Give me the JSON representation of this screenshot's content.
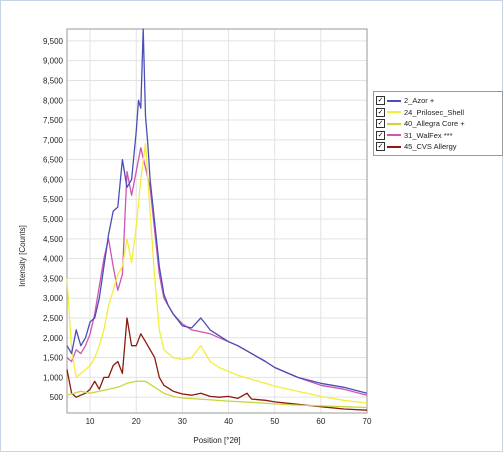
{
  "chart_data": {
    "type": "line",
    "title": "",
    "xlabel": "Position [°2θ]",
    "ylabel": "Intensity [Counts]",
    "xlim": [
      5,
      70
    ],
    "ylim": [
      100,
      9800
    ],
    "x_ticks": [
      "10",
      "20",
      "30",
      "40",
      "50",
      "60",
      "70"
    ],
    "y_ticks": [
      "500",
      "1,000",
      "1,500",
      "2,000",
      "2,500",
      "3,000",
      "3,500",
      "4,000",
      "4,500",
      "5,000",
      "5,500",
      "6,000",
      "6,500",
      "7,000",
      "7,500",
      "8,000",
      "8,500",
      "9,000",
      "9,500"
    ],
    "grid": true,
    "legend_position": "right",
    "series": [
      {
        "name": "2_Azor +",
        "color": "#4a4fb5",
        "x": [
          5,
          6,
          7,
          8,
          9,
          10,
          11,
          12,
          13,
          14,
          15,
          16,
          17,
          18,
          19,
          20,
          20.5,
          21,
          21.5,
          22,
          22.5,
          23,
          24,
          25,
          26,
          27,
          28,
          30,
          32,
          34,
          35,
          36,
          38,
          40,
          42,
          45,
          48,
          50,
          55,
          60,
          65,
          70
        ],
        "y": [
          1800,
          1600,
          2200,
          1800,
          2000,
          2400,
          2500,
          3000,
          3800,
          4600,
          5200,
          5300,
          6500,
          5800,
          6000,
          7200,
          8000,
          7800,
          9800,
          7600,
          6900,
          6000,
          4900,
          3800,
          3100,
          2800,
          2600,
          2300,
          2250,
          2500,
          2350,
          2200,
          2050,
          1900,
          1800,
          1600,
          1400,
          1250,
          1000,
          850,
          750,
          600
        ]
      },
      {
        "name": "24_Prilosec_Shell",
        "color": "#f2ee3a",
        "x": [
          5,
          6,
          7,
          8,
          9,
          10,
          11,
          12,
          13,
          14,
          15,
          16,
          17,
          18,
          19,
          20,
          21,
          22,
          23,
          24,
          25,
          26,
          28,
          30,
          32,
          34,
          36,
          38,
          40,
          42,
          45,
          48,
          50,
          55,
          60,
          65,
          70
        ],
        "y": [
          3500,
          1700,
          1000,
          1100,
          1200,
          1300,
          1500,
          1800,
          2200,
          2800,
          3200,
          3600,
          3800,
          4500,
          3900,
          4800,
          6000,
          6900,
          5200,
          3500,
          2200,
          1700,
          1500,
          1450,
          1500,
          1800,
          1400,
          1250,
          1150,
          1050,
          950,
          850,
          780,
          650,
          520,
          420,
          350
        ]
      },
      {
        "name": "40_Allegra Core +",
        "color": "#c8d63a",
        "x": [
          5,
          8,
          10,
          12,
          14,
          16,
          18,
          20,
          22,
          24,
          26,
          28,
          30,
          35,
          40,
          45,
          50,
          55,
          60,
          65,
          70
        ],
        "y": [
          550,
          650,
          600,
          650,
          700,
          750,
          850,
          900,
          900,
          750,
          600,
          520,
          480,
          440,
          400,
          370,
          330,
          300,
          280,
          260,
          240
        ]
      },
      {
        "name": "31_WalFex ***",
        "color": "#cc55b5",
        "x": [
          5,
          6,
          7,
          8,
          9,
          10,
          11,
          12,
          13,
          14,
          15,
          16,
          17,
          18,
          19,
          20,
          21,
          22,
          23,
          24,
          25,
          26,
          28,
          30,
          32,
          34,
          36,
          38,
          40,
          42,
          45,
          48,
          50,
          55,
          60,
          65,
          70
        ],
        "y": [
          1500,
          1400,
          1700,
          1600,
          1800,
          2100,
          2600,
          3300,
          4000,
          4500,
          3800,
          3200,
          3600,
          6200,
          5600,
          6200,
          6800,
          6300,
          5800,
          4700,
          3600,
          3000,
          2600,
          2350,
          2200,
          2150,
          2100,
          2000,
          1900,
          1800,
          1600,
          1400,
          1250,
          1000,
          800,
          700,
          550
        ]
      },
      {
        "name": "45_CVS Allergy",
        "color": "#8b1a10",
        "x": [
          5,
          6,
          7,
          8,
          9,
          10,
          11,
          12,
          13,
          14,
          15,
          16,
          17,
          18,
          19,
          20,
          21,
          22,
          23,
          24,
          25,
          26,
          28,
          30,
          32,
          34,
          36,
          38,
          40,
          42,
          44,
          45,
          48,
          50,
          55,
          60,
          65,
          70
        ],
        "y": [
          1200,
          600,
          500,
          550,
          600,
          700,
          900,
          700,
          1000,
          1000,
          1300,
          1400,
          1100,
          2500,
          1800,
          1800,
          2100,
          1900,
          1700,
          1500,
          1000,
          800,
          650,
          580,
          550,
          600,
          520,
          500,
          520,
          470,
          600,
          450,
          420,
          380,
          320,
          260,
          200,
          170
        ]
      }
    ]
  }
}
